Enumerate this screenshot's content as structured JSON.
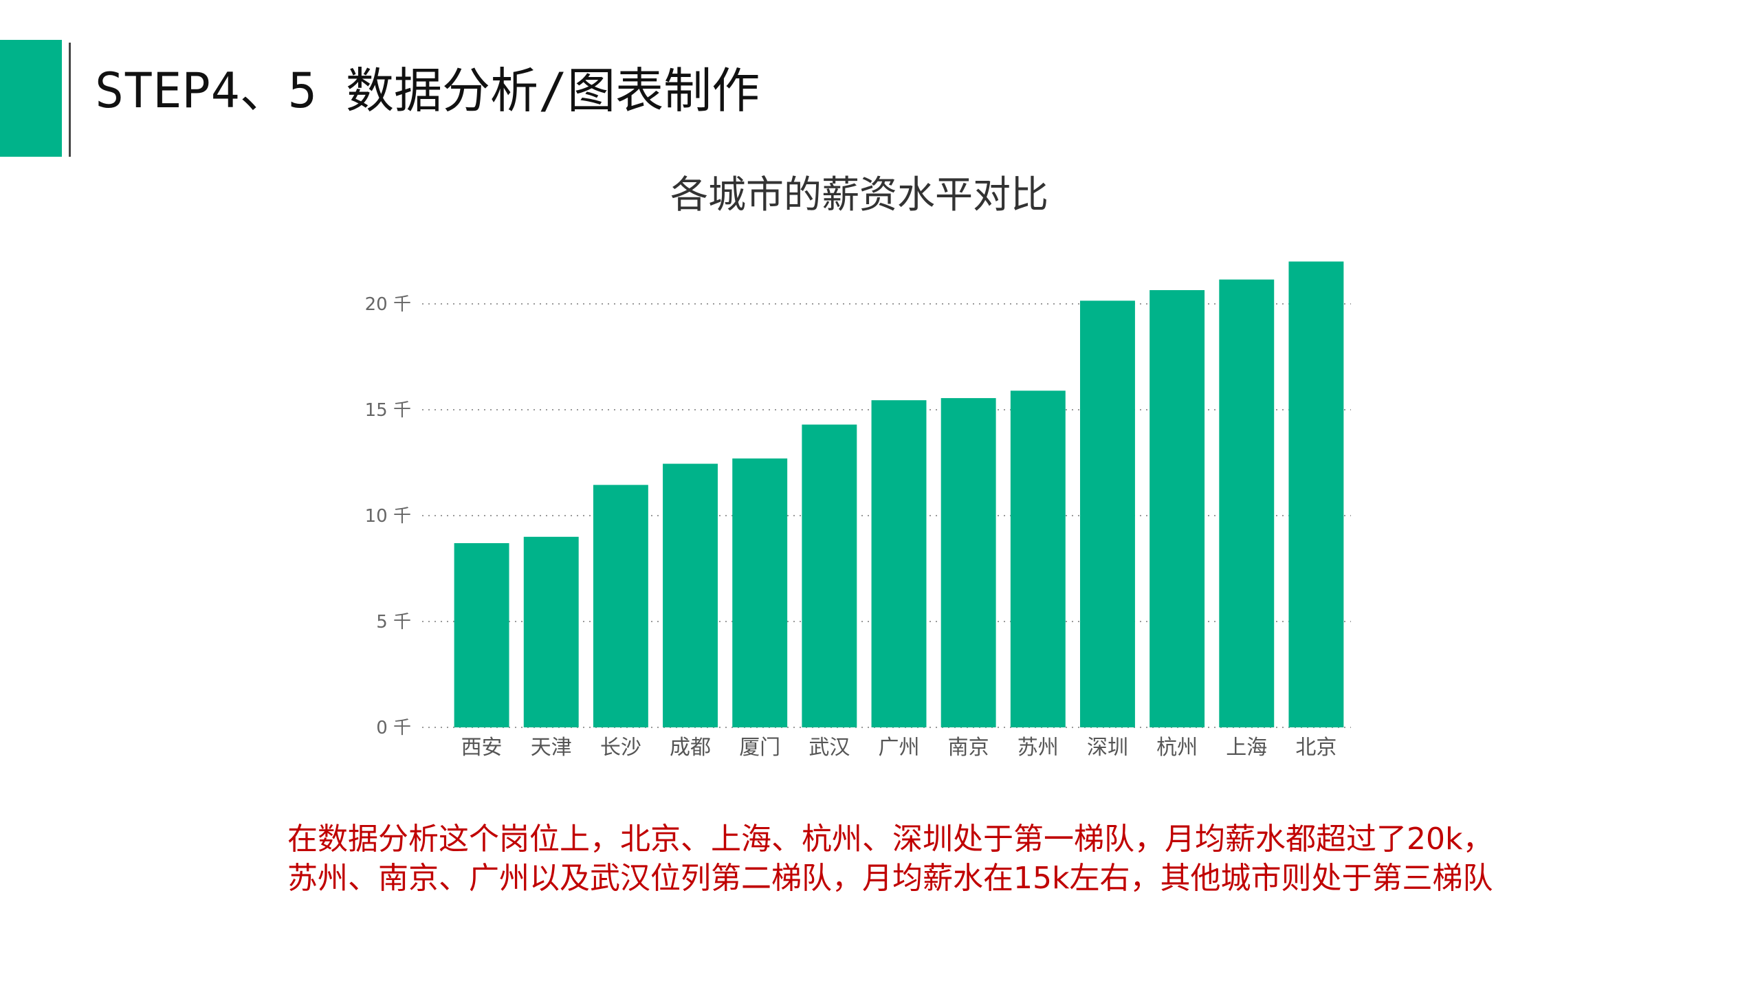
{
  "slide": {
    "title": "STEP4、5 数据分析/图表制作",
    "accent_color": "#00b38a"
  },
  "chart_data": {
    "type": "bar",
    "title": "各城市的薪资水平对比",
    "categories": [
      "西安",
      "天津",
      "长沙",
      "成都",
      "厦门",
      "武汉",
      "广州",
      "南京",
      "苏州",
      "深圳",
      "杭州",
      "上海",
      "北京"
    ],
    "values": [
      8700,
      9000,
      11450,
      12450,
      12700,
      14300,
      15450,
      15550,
      15900,
      20150,
      20650,
      21150,
      22000
    ],
    "ylim": [
      0,
      22000
    ],
    "yticks": [
      {
        "value": 0,
        "label": "0 千"
      },
      {
        "value": 5000,
        "label": "5 千"
      },
      {
        "value": 10000,
        "label": "10 千"
      },
      {
        "value": 15000,
        "label": "15 千"
      },
      {
        "value": 20000,
        "label": "20 千"
      }
    ],
    "grid": true,
    "bar_color": "#00b38a"
  },
  "caption": {
    "text": "在数据分析这个岗位上，北京、上海、杭州、深圳处于第一梯队，月均薪水都超过了20k，苏州、南京、广州以及武汉位列第二梯队，月均薪水在15k左右，其他城市则处于第三梯队"
  }
}
